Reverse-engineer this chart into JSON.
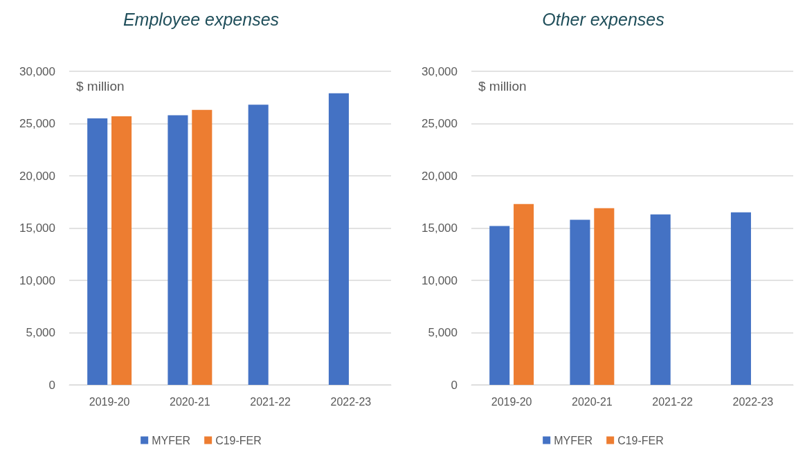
{
  "chart_data": [
    {
      "type": "bar",
      "title": "Employee expenses",
      "categories": [
        "2019-20",
        "2020-21",
        "2021-22",
        "2022-23"
      ],
      "series": [
        {
          "name": "MYFER",
          "color": "#4472c4",
          "values": [
            25500,
            25800,
            26800,
            27900
          ]
        },
        {
          "name": "C19-FER",
          "color": "#ed7d31",
          "values": [
            25700,
            26300,
            null,
            null
          ]
        }
      ],
      "ylim": [
        0,
        30000
      ],
      "yticks": [
        {
          "value": 0,
          "label": "0"
        },
        {
          "value": 5000,
          "label": "5,000"
        },
        {
          "value": 10000,
          "label": "10,000"
        },
        {
          "value": 15000,
          "label": "15,000"
        },
        {
          "value": 20000,
          "label": "20,000"
        },
        {
          "value": 25000,
          "label": "25,000"
        },
        {
          "value": 30000,
          "label": "30,000"
        }
      ],
      "annotations": [
        "$ million"
      ],
      "grid": "y",
      "legend": "bottom"
    },
    {
      "type": "bar",
      "title": "Other expenses",
      "categories": [
        "2019-20",
        "2020-21",
        "2021-22",
        "2022-23"
      ],
      "series": [
        {
          "name": "MYFER",
          "color": "#4472c4",
          "values": [
            15200,
            15800,
            16300,
            16500
          ]
        },
        {
          "name": "C19-FER",
          "color": "#ed7d31",
          "values": [
            17300,
            16900,
            null,
            null
          ]
        }
      ],
      "ylim": [
        0,
        30000
      ],
      "yticks": [
        {
          "value": 0,
          "label": "0"
        },
        {
          "value": 5000,
          "label": "5,000"
        },
        {
          "value": 10000,
          "label": "10,000"
        },
        {
          "value": 15000,
          "label": "15,000"
        },
        {
          "value": 20000,
          "label": "20,000"
        },
        {
          "value": 25000,
          "label": "25,000"
        },
        {
          "value": 30000,
          "label": "30,000"
        }
      ],
      "annotations": [
        "$ million"
      ],
      "grid": "y",
      "legend": "bottom"
    }
  ]
}
